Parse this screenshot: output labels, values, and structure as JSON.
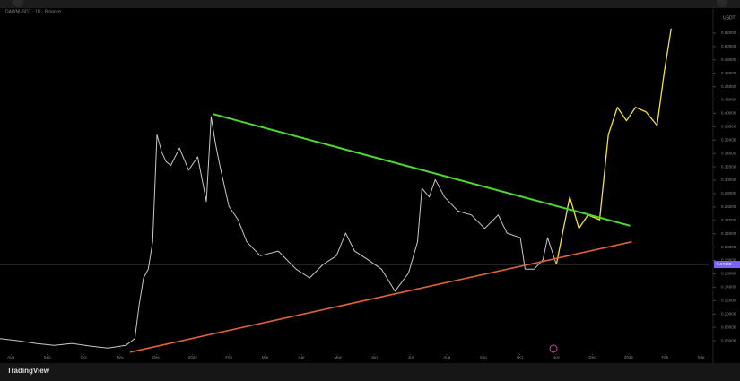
{
  "header": {
    "title": "DAWNUSDT · 1D · Binance",
    "unit": "USDT",
    "logo": "TradingView"
  },
  "chart_data": {
    "type": "line",
    "xlim": [
      -0.3,
      19.2
    ],
    "ylim": [
      0.04,
      0.54
    ],
    "log_scale": false,
    "grid": false,
    "xticks": [
      {
        "value": 0,
        "label": "Aug"
      },
      {
        "value": 1,
        "label": "Sep"
      },
      {
        "value": 2,
        "label": "Oct"
      },
      {
        "value": 3,
        "label": "Nov"
      },
      {
        "value": 4,
        "label": "Dec"
      },
      {
        "value": 5,
        "label": "2024"
      },
      {
        "value": 6,
        "label": "Feb"
      },
      {
        "value": 7,
        "label": "Mar"
      },
      {
        "value": 8,
        "label": "Apr"
      },
      {
        "value": 9,
        "label": "May"
      },
      {
        "value": 10,
        "label": "Jun"
      },
      {
        "value": 11,
        "label": "Jul"
      },
      {
        "value": 12,
        "label": "Aug"
      },
      {
        "value": 13,
        "label": "Sep"
      },
      {
        "value": 14,
        "label": "Oct"
      },
      {
        "value": 15,
        "label": "Nov"
      },
      {
        "value": 16,
        "label": "Dec"
      },
      {
        "value": 17,
        "label": "2025"
      },
      {
        "value": 18,
        "label": "Feb"
      },
      {
        "value": 19,
        "label": "Mar"
      }
    ],
    "yticks": [
      {
        "value": 0.06,
        "label": "0.06000"
      },
      {
        "value": 0.08,
        "label": "0.08000"
      },
      {
        "value": 0.1,
        "label": "0.10000"
      },
      {
        "value": 0.12,
        "label": "0.12000"
      },
      {
        "value": 0.14,
        "label": "0.14000"
      },
      {
        "value": 0.16,
        "label": "0.16000"
      },
      {
        "value": 0.18,
        "label": "0.18000"
      },
      {
        "value": 0.2,
        "label": "0.20000"
      },
      {
        "value": 0.22,
        "label": "0.22000"
      },
      {
        "value": 0.24,
        "label": "0.24000"
      },
      {
        "value": 0.26,
        "label": "0.26000"
      },
      {
        "value": 0.28,
        "label": "0.28000"
      },
      {
        "value": 0.3,
        "label": "0.30000"
      },
      {
        "value": 0.32,
        "label": "0.32000"
      },
      {
        "value": 0.34,
        "label": "0.34000"
      },
      {
        "value": 0.36,
        "label": "0.36000"
      },
      {
        "value": 0.38,
        "label": "0.38000"
      },
      {
        "value": 0.4,
        "label": "0.40000"
      },
      {
        "value": 0.42,
        "label": "0.42000"
      },
      {
        "value": 0.44,
        "label": "0.44000"
      },
      {
        "value": 0.46,
        "label": "0.46000"
      },
      {
        "value": 0.48,
        "label": "0.48000"
      },
      {
        "value": 0.5,
        "label": "0.50000"
      },
      {
        "value": 0.52,
        "label": "0.52000"
      }
    ],
    "series": [
      {
        "color": "#c8c8c8",
        "width": 1,
        "x": [
          -0.3,
          0.2,
          0.69,
          1.19,
          1.68,
          2.17,
          2.67,
          3.16,
          3.41,
          3.53,
          3.65,
          3.78,
          3.9,
          4.02,
          4.15,
          4.27,
          4.4,
          4.64,
          4.89,
          5.14,
          5.38,
          5.51,
          5.63,
          5.75,
          6.0,
          6.25,
          6.49,
          6.86,
          7.36,
          7.85,
          8.22,
          8.59,
          8.96,
          9.21,
          9.46,
          9.83,
          10.2,
          10.57,
          10.94,
          11.19,
          11.31,
          11.51,
          11.68,
          11.93,
          12.3,
          12.67,
          13.04,
          13.41,
          13.65,
          14.02,
          14.15,
          14.4,
          14.64,
          14.77,
          15.01
        ],
        "values": [
          0.063,
          0.06,
          0.056,
          0.053,
          0.056,
          0.052,
          0.049,
          0.053,
          0.063,
          0.114,
          0.154,
          0.167,
          0.208,
          0.368,
          0.342,
          0.328,
          0.322,
          0.348,
          0.315,
          0.335,
          0.268,
          0.395,
          0.355,
          0.322,
          0.261,
          0.241,
          0.208,
          0.187,
          0.194,
          0.167,
          0.154,
          0.174,
          0.187,
          0.221,
          0.194,
          0.181,
          0.167,
          0.134,
          0.161,
          0.208,
          0.288,
          0.275,
          0.301,
          0.275,
          0.254,
          0.248,
          0.228,
          0.248,
          0.221,
          0.214,
          0.167,
          0.167,
          0.181,
          0.214,
          0.174
        ]
      },
      {
        "color": "#f2e33a",
        "width": 1.3,
        "x": [
          15.01,
          15.38,
          15.63,
          15.88,
          16.2,
          16.44,
          16.69,
          16.94,
          17.19,
          17.48,
          17.78,
          17.98,
          18.17
        ],
        "values": [
          0.174,
          0.275,
          0.228,
          0.248,
          0.241,
          0.368,
          0.409,
          0.389,
          0.409,
          0.402,
          0.382,
          0.462,
          0.527
        ]
      },
      {
        "color": "#4cd82e",
        "width": 2,
        "x": [
          5.56,
          17.04
        ],
        "values": [
          0.399,
          0.232
        ]
      },
      {
        "color": "#e0623e",
        "width": 1.6,
        "x": [
          3.28,
          17.09
        ],
        "values": [
          0.043,
          0.208
        ]
      }
    ],
    "price_line": {
      "value": 0.174,
      "label": "0.17400",
      "color": "#7b61ff"
    }
  }
}
